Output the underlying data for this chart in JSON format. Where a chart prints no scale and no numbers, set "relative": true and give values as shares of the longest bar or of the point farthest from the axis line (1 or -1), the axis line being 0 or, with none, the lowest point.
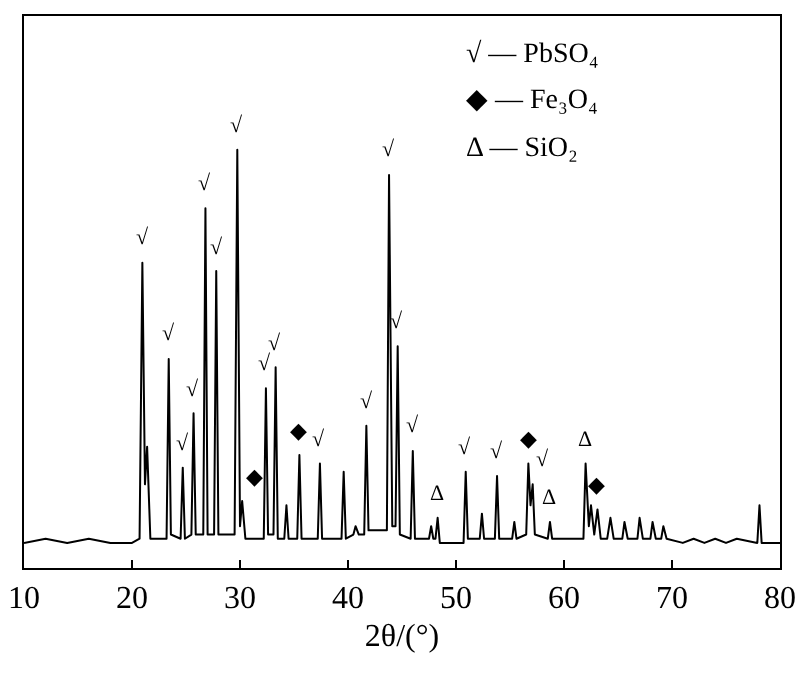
{
  "chart_data": {
    "type": "line",
    "relative": true,
    "xlabel": "2θ/(°)",
    "xlim": [
      10,
      80
    ],
    "xticks": [
      10,
      20,
      30,
      40,
      50,
      60,
      70,
      80
    ],
    "grid": false,
    "marker": "none",
    "line_style": "solid",
    "tick_labels": "x",
    "x": [
      10,
      12,
      14,
      16,
      18,
      20,
      20.7,
      20.96,
      21.2,
      21.4,
      21.7,
      22.5,
      23.2,
      23.4,
      23.6,
      24.5,
      24.7,
      24.9,
      25.5,
      25.7,
      25.9,
      26.6,
      26.8,
      27.0,
      27.6,
      27.8,
      28.0,
      29.5,
      29.75,
      30.0,
      30.2,
      30.5,
      32.2,
      32.4,
      32.6,
      33.1,
      33.3,
      33.5,
      34.1,
      34.3,
      34.5,
      35.3,
      35.5,
      35.7,
      37.2,
      37.4,
      37.6,
      39.4,
      39.6,
      39.8,
      40.5,
      40.7,
      41.0,
      41.5,
      41.7,
      41.9,
      43.6,
      43.8,
      44.1,
      44.4,
      44.6,
      44.8,
      45.8,
      46.0,
      46.2,
      47.5,
      47.7,
      47.9,
      48.1,
      48.3,
      48.5,
      50.7,
      50.9,
      51.1,
      52.2,
      52.4,
      52.6,
      53.6,
      53.8,
      54.0,
      55.2,
      55.4,
      55.6,
      56.5,
      56.7,
      56.9,
      57.1,
      57.3,
      58.5,
      58.7,
      58.9,
      61.8,
      62.0,
      62.3,
      62.5,
      62.8,
      63.1,
      63.4,
      64.0,
      64.3,
      64.6,
      65.4,
      65.6,
      65.9,
      66.8,
      67.0,
      67.3,
      68.0,
      68.2,
      68.5,
      69.0,
      69.2,
      69.5,
      71,
      72,
      73,
      74,
      75,
      76,
      77.9,
      78.1,
      78.3,
      80
    ],
    "series": [
      {
        "color": "#000000",
        "values": [
          0.06,
          0.07,
          0.06,
          0.07,
          0.06,
          0.06,
          0.07,
          0.73,
          0.2,
          0.29,
          0.07,
          0.07,
          0.07,
          0.5,
          0.08,
          0.07,
          0.24,
          0.07,
          0.08,
          0.37,
          0.08,
          0.08,
          0.86,
          0.08,
          0.08,
          0.71,
          0.08,
          0.08,
          1.0,
          0.1,
          0.16,
          0.07,
          0.07,
          0.43,
          0.08,
          0.08,
          0.48,
          0.07,
          0.07,
          0.15,
          0.07,
          0.07,
          0.27,
          0.07,
          0.07,
          0.25,
          0.07,
          0.07,
          0.23,
          0.07,
          0.08,
          0.1,
          0.08,
          0.08,
          0.34,
          0.09,
          0.09,
          0.94,
          0.1,
          0.1,
          0.53,
          0.08,
          0.07,
          0.28,
          0.07,
          0.07,
          0.1,
          0.07,
          0.07,
          0.12,
          0.06,
          0.06,
          0.23,
          0.07,
          0.07,
          0.13,
          0.07,
          0.07,
          0.22,
          0.07,
          0.07,
          0.11,
          0.07,
          0.08,
          0.25,
          0.15,
          0.2,
          0.08,
          0.07,
          0.11,
          0.07,
          0.07,
          0.25,
          0.1,
          0.15,
          0.08,
          0.14,
          0.07,
          0.07,
          0.12,
          0.07,
          0.07,
          0.11,
          0.07,
          0.07,
          0.12,
          0.07,
          0.07,
          0.11,
          0.07,
          0.07,
          0.1,
          0.07,
          0.06,
          0.07,
          0.06,
          0.07,
          0.06,
          0.07,
          0.06,
          0.15,
          0.06,
          0.06
        ]
      }
    ],
    "annotations": [
      "√ — PbSO₄",
      "◆ — Fe₃O₄",
      "Δ — SiO₂",
      {
        "text": "√",
        "x": 20.96,
        "y": 0.73
      },
      {
        "text": "√",
        "x": 23.4,
        "y": 0.5
      },
      {
        "text": "√",
        "x": 24.7,
        "y": 0.24
      },
      {
        "text": "√",
        "x": 25.7,
        "y": 0.37
      },
      {
        "text": "√",
        "x": 26.8,
        "y": 0.86
      },
      {
        "text": "√",
        "x": 27.8,
        "y": 0.71
      },
      {
        "text": "√",
        "x": 29.75,
        "y": 1.0
      },
      {
        "text": "√",
        "x": 32.4,
        "y": 0.43
      },
      {
        "text": "√",
        "x": 33.3,
        "y": 0.48
      },
      {
        "text": "√",
        "x": 37.4,
        "y": 0.25
      },
      {
        "text": "√",
        "x": 41.7,
        "y": 0.34
      },
      {
        "text": "√",
        "x": 43.8,
        "y": 0.94
      },
      {
        "text": "√",
        "x": 44.6,
        "y": 0.53
      },
      {
        "text": "√",
        "x": 46.0,
        "y": 0.28
      },
      {
        "text": "√",
        "x": 50.9,
        "y": 0.23
      },
      {
        "text": "√",
        "x": 53.8,
        "y": 0.22
      },
      {
        "text": "√",
        "x": 57.1,
        "y": 0.2
      },
      {
        "text": "◆",
        "x": 30.2,
        "y": 0.16
      },
      {
        "text": "◆",
        "x": 35.5,
        "y": 0.27
      },
      {
        "text": "◆",
        "x": 56.7,
        "y": 0.25
      },
      {
        "text": "◆",
        "x": 63.1,
        "y": 0.14
      },
      {
        "text": "Δ",
        "x": 48.3,
        "y": 0.12
      },
      {
        "text": "Δ",
        "x": 58.7,
        "y": 0.11
      },
      {
        "text": "Δ",
        "x": 62.0,
        "y": 0.25
      }
    ]
  }
}
